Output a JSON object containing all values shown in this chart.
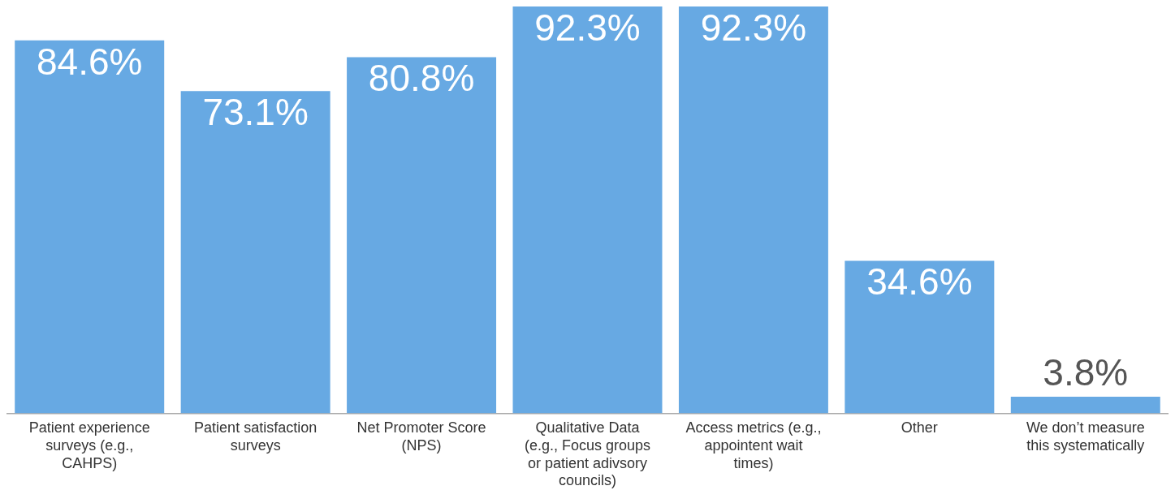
{
  "chart_data": {
    "type": "bar",
    "categories": [
      "Patient experience surveys (e.g., CAHPS)",
      "Patient satisfaction surveys",
      "Net Promoter Score (NPS)",
      "Qualitative Data (e.g., Focus groups or patient adivsory councils)",
      "Access metrics (e.g., appointent wait times)",
      "Other",
      "We don’t measure this systematically"
    ],
    "values": [
      84.6,
      73.1,
      80.8,
      92.3,
      92.3,
      34.6,
      3.8
    ],
    "color": "#67a9e3",
    "value_labels": [
      "84.6%",
      "73.1%",
      "80.8%",
      "92.3%",
      "92.3%",
      "34.6%",
      "3.8%"
    ],
    "grid": false,
    "legend": false
  }
}
